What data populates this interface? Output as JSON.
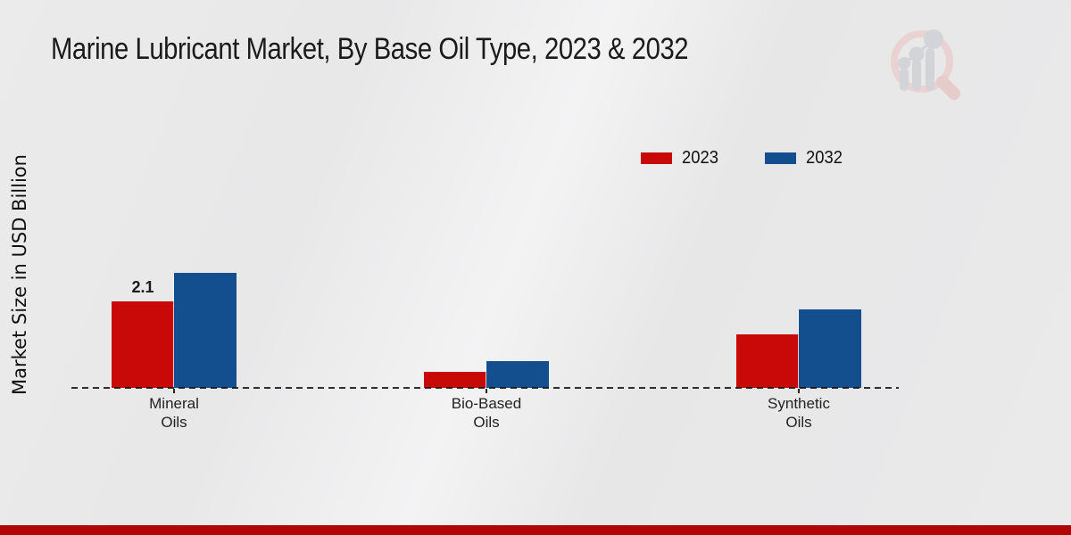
{
  "header": {
    "title": "Marine Lubricant Market, By Base Oil Type, 2023 & 2032"
  },
  "axes": {
    "y_label": "Market Size in USD Billion"
  },
  "legend": {
    "items": [
      {
        "label": "2023",
        "color": "#c90808"
      },
      {
        "label": "2032",
        "color": "#134f8f"
      }
    ]
  },
  "chart_data": {
    "type": "bar",
    "title": "Marine Lubricant Market, By Base Oil Type, 2023 & 2032",
    "xlabel": "",
    "ylabel": "Market Size in USD Billion",
    "categories": [
      "Mineral Oils",
      "Bio-Based Oils",
      "Synthetic Oils"
    ],
    "category_label_lines": [
      [
        "Mineral",
        "Oils"
      ],
      [
        "Bio-Based",
        "Oils"
      ],
      [
        "Synthetic",
        "Oils"
      ]
    ],
    "series": [
      {
        "name": "2023",
        "color": "#c90808",
        "values": [
          2.1,
          0.4,
          1.3
        ]
      },
      {
        "name": "2032",
        "color": "#134f8f",
        "values": [
          2.8,
          0.65,
          1.9
        ]
      }
    ],
    "value_labels": [
      {
        "category": "Mineral Oils",
        "series": "2023",
        "text": "2.1"
      }
    ],
    "ylim": [
      0,
      3.2
    ],
    "grid": false,
    "legend_position": "top-right",
    "baseline_style": "dashed"
  },
  "branding": {
    "logo_icon": "magnifier-bar-chart-watermark",
    "footer_color": "#b30505"
  }
}
